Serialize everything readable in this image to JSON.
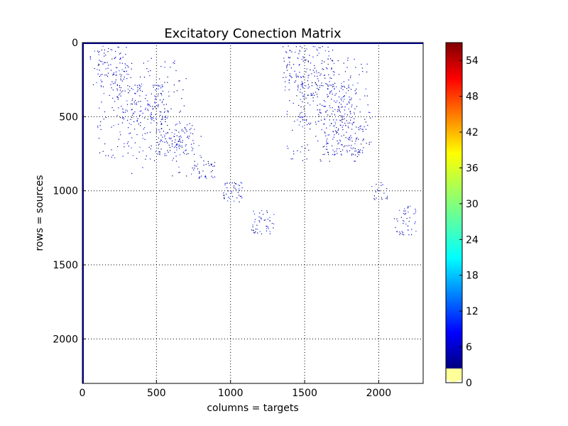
{
  "chart_data": {
    "type": "heatmap",
    "title": "Excitatory Conection Matrix",
    "xlabel": "columns = targets",
    "ylabel": "rows = sources",
    "x_range": [
      0,
      2300
    ],
    "y_range": [
      0,
      2300
    ],
    "y_inverted": true,
    "grid": true,
    "x_ticks": [
      0,
      500,
      1000,
      1500,
      2000
    ],
    "y_ticks": [
      0,
      500,
      1000,
      1500,
      2000
    ],
    "x_tick_labels": [
      "0",
      "500",
      "1000",
      "1500",
      "2000"
    ],
    "y_tick_labels": [
      "0",
      "500",
      "1000",
      "1500",
      "2000"
    ],
    "colormap": "jet",
    "colorbar": {
      "range": [
        0,
        57
      ],
      "ticks": [
        0,
        6,
        12,
        18,
        24,
        30,
        36,
        42,
        48,
        54
      ],
      "tick_labels": [
        "0",
        "6",
        "12",
        "18",
        "24",
        "30",
        "36",
        "42",
        "48",
        "54"
      ],
      "under_color": "#ffff99"
    },
    "clusters": [
      {
        "x": [
          50,
          300
        ],
        "y": [
          20,
          300
        ],
        "density": 0.5
      },
      {
        "x": [
          230,
          560
        ],
        "y": [
          280,
          560
        ],
        "density": 0.6
      },
      {
        "x": [
          500,
          760
        ],
        "y": [
          540,
          760
        ],
        "density": 0.7
      },
      {
        "x": [
          740,
          900
        ],
        "y": [
          760,
          920
        ],
        "density": 0.6
      },
      {
        "x": [
          950,
          1080
        ],
        "y": [
          940,
          1080
        ],
        "density": 0.9
      },
      {
        "x": [
          1130,
          1290
        ],
        "y": [
          1130,
          1290
        ],
        "density": 0.7
      },
      {
        "x": [
          1350,
          1700
        ],
        "y": [
          20,
          300
        ],
        "density": 0.5
      },
      {
        "x": [
          1450,
          1850
        ],
        "y": [
          280,
          560
        ],
        "density": 0.6
      },
      {
        "x": [
          1620,
          1900
        ],
        "y": [
          540,
          760
        ],
        "density": 0.7
      },
      {
        "x": [
          1950,
          2060
        ],
        "y": [
          940,
          1060
        ],
        "density": 0.6
      },
      {
        "x": [
          2100,
          2250
        ],
        "y": [
          1100,
          1300
        ],
        "density": 0.6
      },
      {
        "x": [
          100,
          700
        ],
        "y": [
          100,
          800
        ],
        "density": 0.15
      },
      {
        "x": [
          1350,
          1950
        ],
        "y": [
          100,
          800
        ],
        "density": 0.15
      },
      {
        "x": [
          300,
          800
        ],
        "y": [
          600,
          900
        ],
        "density": 0.1
      }
    ]
  }
}
